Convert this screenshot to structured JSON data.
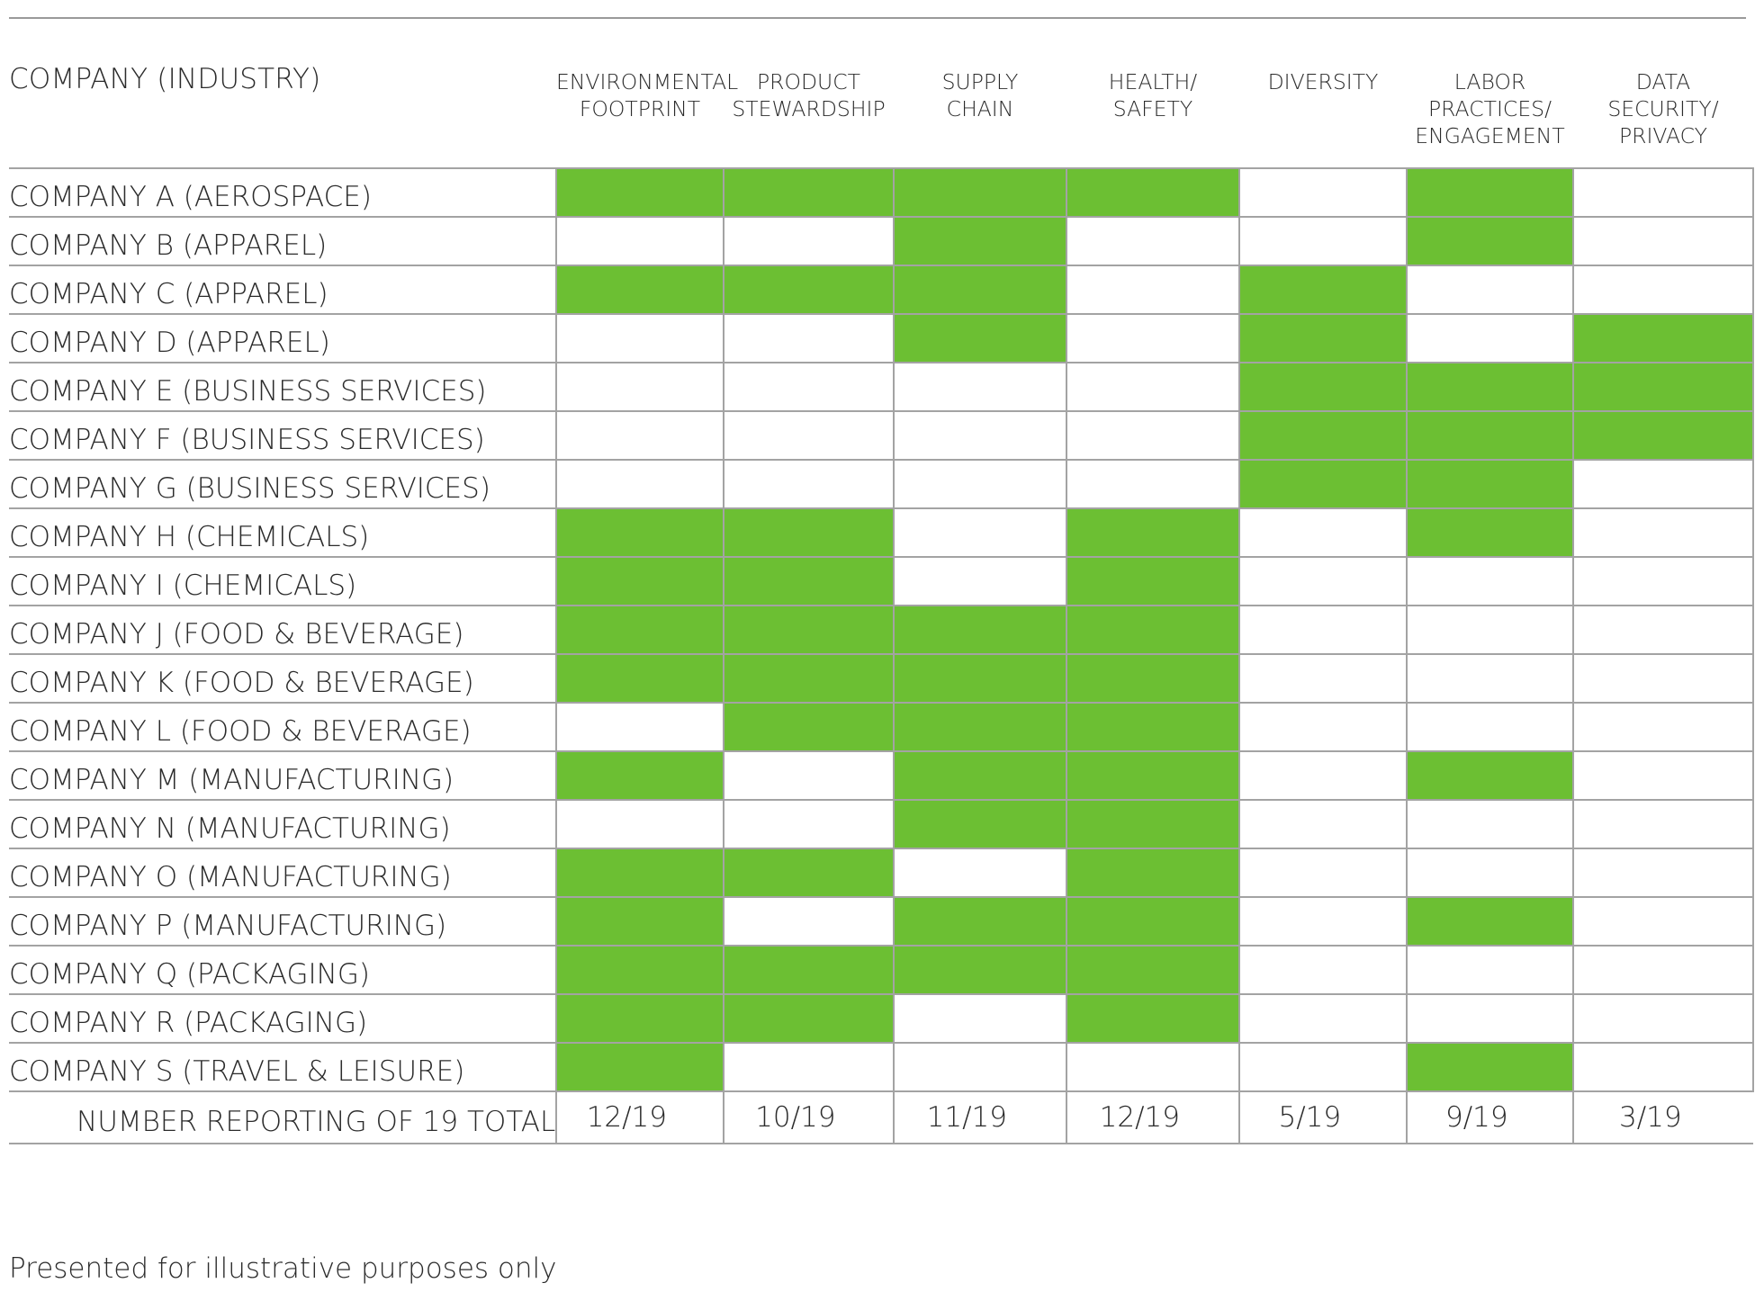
{
  "chart_data": {
    "type": "table",
    "row_header": "COMPANY (INDUSTRY)",
    "columns": [
      {
        "lines": [
          "ENVIRONMENTAL",
          "FOOTPRINT"
        ]
      },
      {
        "lines": [
          "PRODUCT",
          "STEWARDSHIP"
        ]
      },
      {
        "lines": [
          "SUPPLY",
          "CHAIN"
        ]
      },
      {
        "lines": [
          "HEALTH/",
          "SAFETY"
        ]
      },
      {
        "lines": [
          "DIVERSITY"
        ]
      },
      {
        "lines": [
          "LABOR",
          "PRACTICES/",
          "ENGAGEMENT"
        ]
      },
      {
        "lines": [
          "DATA",
          "SECURITY/",
          "PRIVACY"
        ]
      }
    ],
    "rows": [
      {
        "label": "COMPANY A (AEROSPACE)",
        "values": [
          1,
          1,
          1,
          1,
          0,
          1,
          0
        ]
      },
      {
        "label": "COMPANY B (APPAREL)",
        "values": [
          0,
          0,
          1,
          0,
          0,
          1,
          0
        ]
      },
      {
        "label": "COMPANY C (APPAREL)",
        "values": [
          1,
          1,
          1,
          0,
          1,
          0,
          0
        ]
      },
      {
        "label": "COMPANY D (APPAREL)",
        "values": [
          0,
          0,
          1,
          0,
          1,
          0,
          1
        ]
      },
      {
        "label": "COMPANY E (BUSINESS SERVICES)",
        "values": [
          0,
          0,
          0,
          0,
          1,
          1,
          1
        ]
      },
      {
        "label": "COMPANY F (BUSINESS SERVICES)",
        "values": [
          0,
          0,
          0,
          0,
          1,
          1,
          1
        ]
      },
      {
        "label": "COMPANY G (BUSINESS SERVICES)",
        "values": [
          0,
          0,
          0,
          0,
          1,
          1,
          0
        ]
      },
      {
        "label": "COMPANY H (CHEMICALS)",
        "values": [
          1,
          1,
          0,
          1,
          0,
          1,
          0
        ]
      },
      {
        "label": "COMPANY I (CHEMICALS)",
        "values": [
          1,
          1,
          0,
          1,
          0,
          0,
          0
        ]
      },
      {
        "label": "COMPANY J (FOOD & BEVERAGE)",
        "values": [
          1,
          1,
          1,
          1,
          0,
          0,
          0
        ]
      },
      {
        "label": "COMPANY K (FOOD & BEVERAGE)",
        "values": [
          1,
          1,
          1,
          1,
          0,
          0,
          0
        ]
      },
      {
        "label": "COMPANY L (FOOD & BEVERAGE)",
        "values": [
          0,
          1,
          1,
          1,
          0,
          0,
          0
        ]
      },
      {
        "label": "COMPANY M (MANUFACTURING)",
        "values": [
          1,
          0,
          1,
          1,
          0,
          1,
          0
        ]
      },
      {
        "label": "COMPANY N (MANUFACTURING)",
        "values": [
          0,
          0,
          1,
          1,
          0,
          0,
          0
        ]
      },
      {
        "label": "COMPANY O (MANUFACTURING)",
        "values": [
          1,
          1,
          0,
          1,
          0,
          0,
          0
        ]
      },
      {
        "label": "COMPANY P (MANUFACTURING)",
        "values": [
          1,
          0,
          1,
          1,
          0,
          1,
          0
        ]
      },
      {
        "label": "COMPANY Q (PACKAGING)",
        "values": [
          1,
          1,
          1,
          1,
          0,
          0,
          0
        ]
      },
      {
        "label": "COMPANY R (PACKAGING)",
        "values": [
          1,
          1,
          0,
          1,
          0,
          0,
          0
        ]
      },
      {
        "label": "COMPANY S (TRAVEL & LEISURE)",
        "values": [
          1,
          0,
          0,
          0,
          0,
          1,
          0
        ]
      }
    ],
    "total_label": "NUMBER REPORTING OF 19 TOTAL",
    "totals": [
      "12/19",
      "10/19",
      "11/19",
      "12/19",
      "5/19",
      "9/19",
      "3/19"
    ],
    "filled_color": "#6cbf33",
    "empty_color": "#ffffff",
    "grid_color": "#a3a3a3"
  },
  "footnote": "Presented for illustrative purposes only"
}
